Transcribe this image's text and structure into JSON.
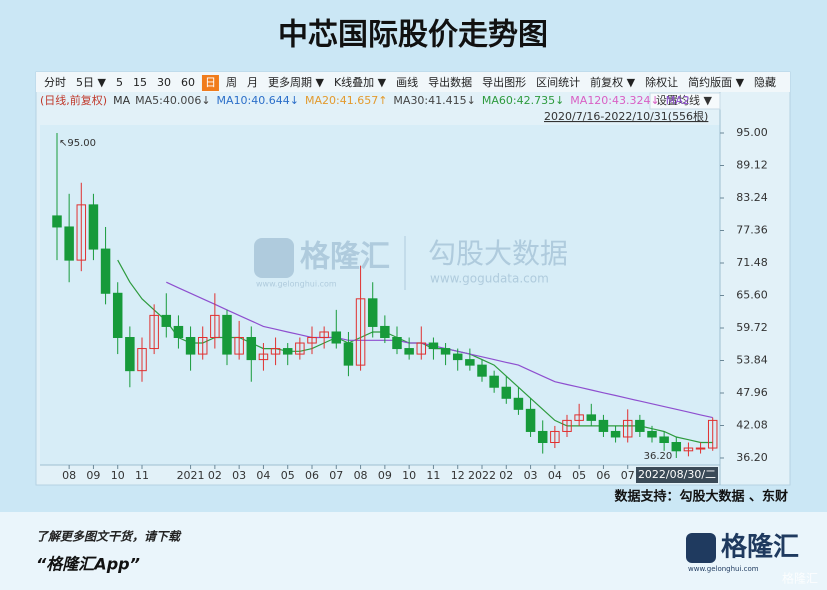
{
  "chart_data": {
    "type": "candlestick",
    "title": "中芯国际股价走势图",
    "source": "数据支持：勾股大数据 、东财",
    "range_info": "2020/7/16-2022/10/31(556根)",
    "mode_label": "(日线,前复权)",
    "ma_prefix": "MA",
    "ma_settings": "设置均线 ▼",
    "cursor_label": "2022/08/30/二",
    "up_color": "#e0302f",
    "down_color": "#179a3a",
    "x": [
      0.5,
      1,
      1.5,
      2,
      2.5,
      3,
      3.5,
      4,
      4.5,
      5,
      5.5,
      6,
      6.5,
      7,
      7.5,
      8,
      8.5,
      9,
      9.5,
      10,
      10.5,
      11,
      11.5,
      12,
      12.5,
      13,
      13.5,
      14,
      14.5,
      15,
      15.5,
      16,
      16.5,
      17,
      17.5,
      18,
      18.5,
      19,
      19.5,
      20,
      20.5,
      21,
      21.5,
      22,
      22.5,
      23,
      23.5,
      24,
      24.5,
      25,
      25.5,
      26,
      26.5,
      27,
      27.5
    ],
    "open": [
      80,
      78,
      72,
      82,
      74,
      66,
      58,
      52,
      56,
      62,
      60,
      58,
      55,
      58,
      62,
      55,
      58,
      54,
      55,
      56,
      55,
      57,
      58,
      59,
      57,
      53,
      65,
      60,
      58,
      56,
      55,
      57,
      56,
      55,
      54,
      53,
      51,
      49,
      47,
      45,
      41,
      39,
      41,
      43,
      44,
      43,
      41,
      40,
      43,
      41,
      40,
      39,
      37.5,
      38,
      38
    ],
    "high": [
      95,
      84,
      86,
      84,
      78,
      68,
      60,
      58,
      64,
      66,
      62,
      60,
      60,
      66,
      63,
      61,
      60,
      57,
      58,
      57,
      58,
      60,
      60,
      63,
      59,
      71,
      68,
      62,
      60,
      58,
      60,
      58,
      57,
      56,
      56,
      54,
      52,
      51,
      49,
      47,
      43,
      42,
      44,
      46,
      46,
      44,
      42,
      45,
      44,
      42,
      41,
      40,
      39,
      39,
      43.5
    ],
    "low": [
      72,
      68,
      70,
      72,
      64,
      55,
      49,
      50,
      55,
      58,
      56,
      52,
      54,
      56,
      53,
      54,
      50,
      52,
      53,
      53,
      54,
      55,
      56,
      56,
      51,
      52,
      58,
      57,
      55,
      54,
      54,
      54,
      53,
      52,
      52,
      50,
      48,
      46,
      44,
      40,
      37,
      38,
      40,
      42,
      42,
      40,
      39,
      39,
      40,
      39,
      37.5,
      36.2,
      36.5,
      37,
      37.5
    ],
    "close": [
      78,
      72,
      82,
      74,
      66,
      58,
      52,
      56,
      62,
      60,
      58,
      55,
      58,
      62,
      55,
      58,
      54,
      55,
      56,
      55,
      57,
      58,
      59,
      57,
      53,
      65,
      60,
      58,
      56,
      55,
      57,
      56,
      55,
      54,
      53,
      51,
      49,
      47,
      45,
      41,
      39,
      41,
      43,
      44,
      43,
      41,
      40,
      43,
      41,
      40,
      39,
      37.5,
      38,
      38,
      43
    ],
    "ma": [
      {
        "label": "MA5:40.006↓",
        "color": "#444444"
      },
      {
        "label": "MA10:40.644↓",
        "color": "#2c6fc9"
      },
      {
        "label": "MA20:41.657↑",
        "color": "#e39a2d"
      },
      {
        "label": "MA30:41.415↓",
        "color": "#444444"
      },
      {
        "label": "MA60:42.735↓",
        "color": "#2e9b3e",
        "values": [
          null,
          null,
          null,
          null,
          null,
          72,
          68,
          65,
          63,
          61,
          58,
          57,
          57,
          58,
          58,
          58,
          57,
          56,
          56,
          55.5,
          55.5,
          56,
          57,
          58,
          57,
          58,
          59,
          59,
          58,
          57,
          57,
          56,
          56,
          55.5,
          55,
          54,
          53,
          51,
          49,
          47,
          45,
          43,
          42,
          42,
          42,
          42,
          42,
          42,
          42,
          41.5,
          41,
          40,
          39.5,
          39,
          39
        ]
      },
      {
        "label": "MA120:43.324↓",
        "color": "#d95fc4"
      },
      {
        "label": "MA2",
        "color": "#8e4fcf",
        "values": [
          null,
          null,
          null,
          null,
          null,
          null,
          null,
          null,
          null,
          68,
          67,
          66,
          65,
          64,
          63,
          62,
          61,
          60,
          59.5,
          59,
          58.5,
          58,
          58,
          58,
          57.5,
          57.5,
          57.5,
          57.5,
          57.5,
          57,
          57,
          56.5,
          56,
          55.5,
          55,
          54.5,
          54,
          53.5,
          53,
          52,
          51,
          50,
          49.5,
          49,
          48.5,
          48,
          47.5,
          47,
          46.5,
          46,
          45.5,
          45,
          44.5,
          44,
          43.5
        ]
      }
    ],
    "xlim": [
      -0.2,
      27.8
    ],
    "xticks": [
      {
        "value": 1,
        "label": "08"
      },
      {
        "value": 2,
        "label": "09"
      },
      {
        "value": 3,
        "label": "10"
      },
      {
        "value": 4,
        "label": "11"
      },
      {
        "value": 6,
        "label": "2021"
      },
      {
        "value": 7,
        "label": "02"
      },
      {
        "value": 8,
        "label": "03"
      },
      {
        "value": 9,
        "label": "04"
      },
      {
        "value": 10,
        "label": "05"
      },
      {
        "value": 11,
        "label": "06"
      },
      {
        "value": 12,
        "label": "07"
      },
      {
        "value": 13,
        "label": "08"
      },
      {
        "value": 14,
        "label": "09"
      },
      {
        "value": 15,
        "label": "10"
      },
      {
        "value": 16,
        "label": "11"
      },
      {
        "value": 17,
        "label": "12"
      },
      {
        "value": 18,
        "label": "2022"
      },
      {
        "value": 19,
        "label": "02"
      },
      {
        "value": 20,
        "label": "03"
      },
      {
        "value": 21,
        "label": "04"
      },
      {
        "value": 22,
        "label": "05"
      },
      {
        "value": 23,
        "label": "06"
      },
      {
        "value": 24,
        "label": "07"
      }
    ],
    "ylim": [
      34.93,
      96.45
    ],
    "yticks": [
      {
        "value": 36.2,
        "label": "36.20"
      },
      42.08,
      47.96,
      53.84,
      59.72,
      {
        "value": 65.6,
        "label": "65.60"
      },
      71.48,
      77.36,
      83.24,
      89.12,
      {
        "value": 95,
        "label": "95.00"
      }
    ],
    "annotations": [
      {
        "label": "↖95.00",
        "x": 0.5,
        "value": 95
      },
      {
        "label": "36.20",
        "x": 26,
        "value": 36.2
      }
    ]
  },
  "toolbar": {
    "items": [
      "分时",
      "5日 ▼",
      "5",
      "15",
      "30",
      "60",
      "日",
      "周",
      "月",
      "更多周期 ▼",
      "K线叠加 ▼",
      "画线",
      "导出数据",
      "导出图形",
      "区间统计",
      "前复权 ▼",
      "除权让",
      "简约版面 ▼",
      "隐藏"
    ],
    "active": 6
  },
  "watermark": {
    "brand": "格隆汇",
    "brand_url": "www.gelonghui.com",
    "data_brand": "勾股大数据",
    "data_url": "www.gogudata.com"
  },
  "footer": {
    "prompt": "了解更多图文干货，请下载",
    "app": "“格隆汇App”",
    "logo": "格隆汇",
    "logo_url": "www.gelonghui.com",
    "corner": "格隆汇"
  }
}
